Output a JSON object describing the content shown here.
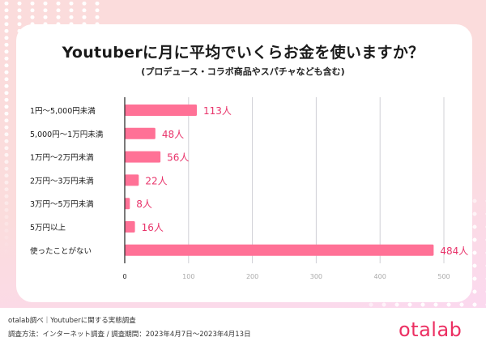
{
  "colors": {
    "bar": "#ff7196",
    "value_label": "#e8336a",
    "grid": "#d0d0d6",
    "axis": "#222222",
    "logo": "#ec2f62"
  },
  "chart_data": {
    "type": "bar",
    "orientation": "horizontal",
    "title": "Youtuberに月に平均でいくらお金を使いますか？",
    "subtitle": "(プロデュース・コラボ商品やスパチャなども含む)",
    "categories": [
      "1円〜5,000円未満",
      "5,000円〜1万円未満",
      "1万円〜2万円未満",
      "2万円〜3万円未満",
      "3万円〜5万円未満",
      "5万円以上",
      "使ったことがない"
    ],
    "values": [
      113,
      48,
      56,
      22,
      8,
      16,
      484
    ],
    "value_labels": [
      "113人",
      "48人",
      "56人",
      "22人",
      "8人",
      "16人",
      "484人"
    ],
    "xlim": [
      0,
      500
    ],
    "xticks": [
      0,
      100,
      200,
      300,
      400,
      500
    ],
    "xtick_labels": [
      "0",
      "100",
      "200",
      "300",
      "400",
      "500"
    ],
    "xlabel": "",
    "ylabel": "",
    "grid": true
  },
  "footer": {
    "source": "otalab調べ｜Youtuberに関する実態調査",
    "method": "調査方法：インターネット調査 / 調査期間：2023年4月7日〜2023年4月13日",
    "logo": "otalab"
  }
}
